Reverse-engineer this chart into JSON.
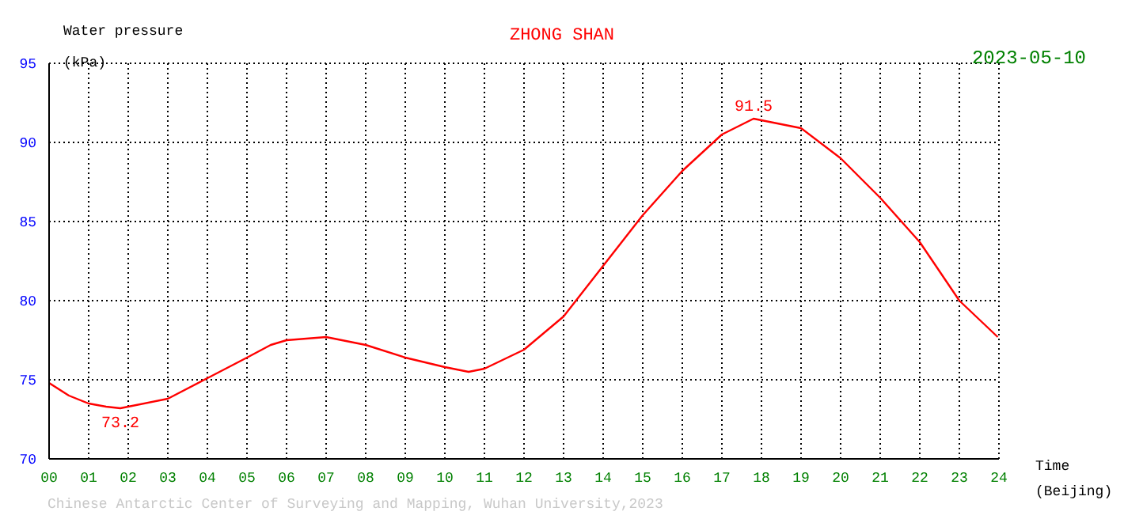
{
  "chart_data": {
    "type": "line",
    "title": "ZHONG SHAN",
    "subtitle": "2023-05-10",
    "xlabel": "Time\n(Beijing)",
    "ylabel": "Water pressure\n(kPa)",
    "annotations": [
      {
        "text": "73.2",
        "x": 1.8,
        "y": 73.2
      },
      {
        "text": "91.5",
        "x": 17.8,
        "y": 91.5
      },
      "Chinese Antarctic Center of Surveying and Mapping, Wuhan University,2023"
    ],
    "x": [
      0,
      0.5,
      1,
      1.44,
      1.8,
      2,
      3,
      4,
      5,
      5.6,
      6,
      7,
      8,
      9,
      10,
      10.6,
      11,
      12,
      13,
      14,
      15,
      16,
      17,
      17.8,
      18,
      19,
      20,
      21,
      22,
      23,
      23.97
    ],
    "series": [
      {
        "color": "#ff0000",
        "values": [
          74.8,
          74.0,
          73.5,
          73.3,
          73.2,
          73.3,
          73.8,
          75.1,
          76.4,
          77.2,
          77.5,
          77.7,
          77.2,
          76.4,
          75.8,
          75.5,
          75.7,
          76.9,
          79.0,
          82.2,
          85.4,
          88.2,
          90.5,
          91.5,
          91.4,
          90.9,
          89.0,
          86.5,
          83.7,
          80.0,
          77.7
        ]
      }
    ],
    "xlim": [
      0,
      24
    ],
    "ylim": [
      70,
      95
    ],
    "xticks": [
      {
        "value": 0,
        "label": "00"
      },
      {
        "value": 1,
        "label": "01"
      },
      {
        "value": 2,
        "label": "02"
      },
      {
        "value": 3,
        "label": "03"
      },
      {
        "value": 4,
        "label": "04"
      },
      {
        "value": 5,
        "label": "05"
      },
      {
        "value": 6,
        "label": "06"
      },
      {
        "value": 7,
        "label": "07"
      },
      {
        "value": 8,
        "label": "08"
      },
      {
        "value": 9,
        "label": "09"
      },
      {
        "value": 10,
        "label": "10"
      },
      {
        "value": 11,
        "label": "11"
      },
      {
        "value": 12,
        "label": "12"
      },
      {
        "value": 13,
        "label": "13"
      },
      {
        "value": 14,
        "label": "14"
      },
      {
        "value": 15,
        "label": "15"
      },
      {
        "value": 16,
        "label": "16"
      },
      {
        "value": 17,
        "label": "17"
      },
      {
        "value": 18,
        "label": "18"
      },
      {
        "value": 19,
        "label": "19"
      },
      {
        "value": 20,
        "label": "20"
      },
      {
        "value": 21,
        "label": "21"
      },
      {
        "value": 22,
        "label": "22"
      },
      {
        "value": 23,
        "label": "23"
      },
      {
        "value": 24,
        "label": "24"
      }
    ],
    "yticks": [
      70,
      75,
      80,
      85,
      90,
      95
    ],
    "grid": true,
    "marker": "none",
    "line_style": "solid"
  }
}
